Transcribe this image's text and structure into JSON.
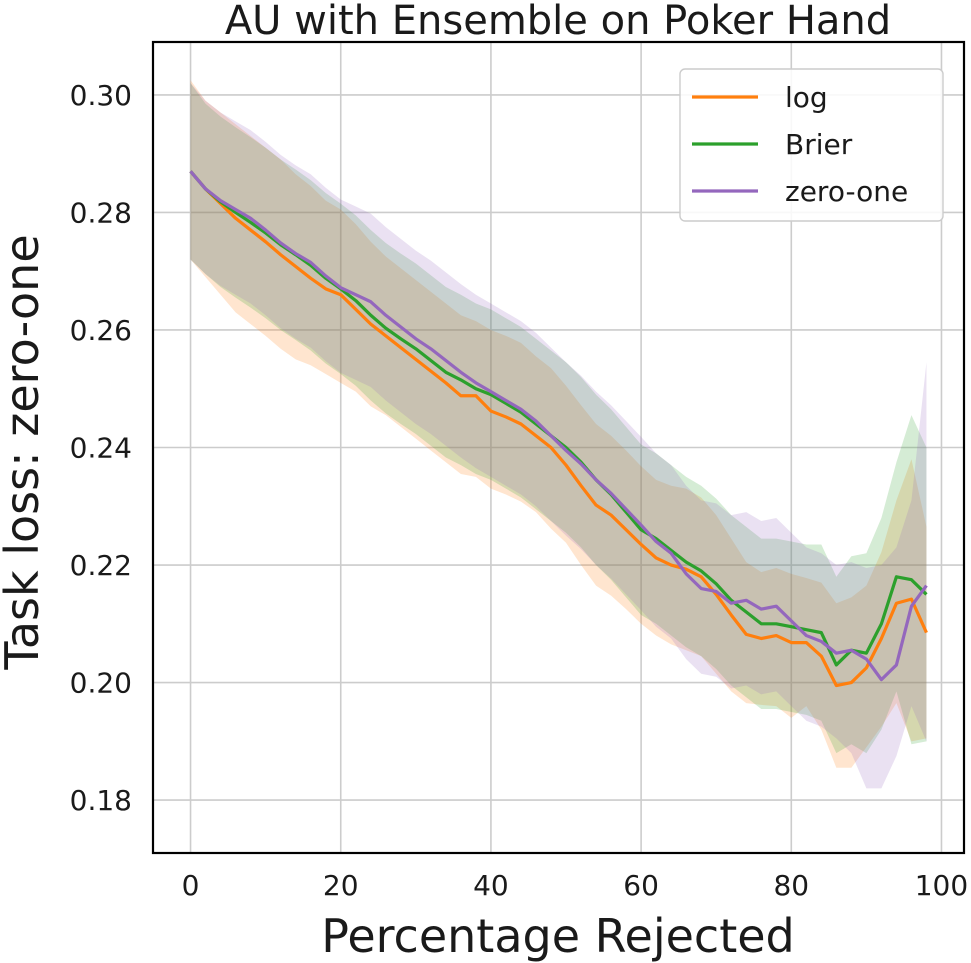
{
  "chart_data": {
    "type": "line",
    "title": "AU with Ensemble on Poker Hand",
    "xlabel": "Percentage Rejected",
    "ylabel": "Task loss: zero-one",
    "xlim": [
      -5,
      103
    ],
    "ylim": [
      0.171,
      0.309
    ],
    "xticks": [
      0,
      20,
      40,
      60,
      80,
      100
    ],
    "yticks": [
      0.18,
      0.2,
      0.22,
      0.24,
      0.26,
      0.28,
      0.3
    ],
    "xtick_labels": [
      "0",
      "20",
      "40",
      "60",
      "80",
      "100"
    ],
    "ytick_labels": [
      "0.18",
      "0.20",
      "0.22",
      "0.24",
      "0.26",
      "0.28",
      "0.30"
    ],
    "grid": true,
    "legend_position": "top-right",
    "x": [
      0,
      2,
      4,
      6,
      8,
      10,
      12,
      14,
      16,
      18,
      20,
      22,
      24,
      26,
      28,
      30,
      32,
      34,
      36,
      38,
      40,
      42,
      44,
      46,
      48,
      50,
      52,
      54,
      56,
      58,
      60,
      62,
      64,
      66,
      68,
      70,
      72,
      74,
      76,
      78,
      80,
      82,
      84,
      86,
      88,
      90,
      92,
      94,
      96,
      98
    ],
    "series": [
      {
        "name": "log",
        "color": "#ff7f0e",
        "values": [
          0.287,
          0.284,
          0.2815,
          0.279,
          0.277,
          0.275,
          0.2728,
          0.2708,
          0.2688,
          0.267,
          0.266,
          0.2635,
          0.261,
          0.259,
          0.257,
          0.255,
          0.253,
          0.251,
          0.2488,
          0.2488,
          0.2462,
          0.2452,
          0.244,
          0.242,
          0.24,
          0.237,
          0.2335,
          0.2302,
          0.2285,
          0.226,
          0.2235,
          0.2212,
          0.22,
          0.2193,
          0.218,
          0.215,
          0.2115,
          0.2082,
          0.2075,
          0.208,
          0.2068,
          0.2068,
          0.2045,
          0.1995,
          0.2,
          0.2025,
          0.2075,
          0.2135,
          0.2142,
          0.2085
        ],
        "lower": [
          0.272,
          0.269,
          0.266,
          0.263,
          0.261,
          0.259,
          0.2568,
          0.255,
          0.254,
          0.2525,
          0.251,
          0.2495,
          0.247,
          0.2455,
          0.2435,
          0.2415,
          0.2395,
          0.2375,
          0.2355,
          0.235,
          0.233,
          0.232,
          0.2308,
          0.229,
          0.2262,
          0.2238,
          0.22,
          0.2165,
          0.2148,
          0.2125,
          0.21,
          0.208,
          0.2065,
          0.2055,
          0.2045,
          0.2015,
          0.1985,
          0.1965,
          0.1962,
          0.196,
          0.194,
          0.196,
          0.192,
          0.1855,
          0.1855,
          0.189,
          0.1925,
          0.1965,
          0.19,
          0.1905
        ],
        "upper": [
          0.3025,
          0.299,
          0.297,
          0.295,
          0.293,
          0.291,
          0.289,
          0.2865,
          0.2845,
          0.282,
          0.2805,
          0.278,
          0.275,
          0.2725,
          0.2705,
          0.2685,
          0.2665,
          0.2645,
          0.2625,
          0.2615,
          0.26,
          0.259,
          0.2578,
          0.2555,
          0.2535,
          0.2505,
          0.2472,
          0.244,
          0.242,
          0.2395,
          0.2368,
          0.2345,
          0.2335,
          0.233,
          0.2315,
          0.2285,
          0.2245,
          0.2205,
          0.2188,
          0.2195,
          0.2185,
          0.2178,
          0.217,
          0.2135,
          0.2145,
          0.2165,
          0.2222,
          0.231,
          0.238,
          0.2265
        ]
      },
      {
        "name": "Brier",
        "color": "#2ca02c",
        "values": [
          0.287,
          0.284,
          0.2818,
          0.28,
          0.2783,
          0.2765,
          0.2745,
          0.2728,
          0.271,
          0.2688,
          0.267,
          0.265,
          0.2625,
          0.2603,
          0.2585,
          0.2568,
          0.2548,
          0.2528,
          0.2515,
          0.25,
          0.249,
          0.2475,
          0.246,
          0.244,
          0.242,
          0.24,
          0.2375,
          0.2345,
          0.232,
          0.229,
          0.226,
          0.2245,
          0.2225,
          0.2205,
          0.219,
          0.2168,
          0.214,
          0.212,
          0.21,
          0.21,
          0.2095,
          0.209,
          0.2085,
          0.203,
          0.2055,
          0.205,
          0.21,
          0.218,
          0.2175,
          0.215
        ],
        "lower": [
          0.272,
          0.2695,
          0.2673,
          0.2655,
          0.2638,
          0.262,
          0.26,
          0.2583,
          0.2565,
          0.2543,
          0.2525,
          0.2505,
          0.248,
          0.2458,
          0.244,
          0.2423,
          0.2403,
          0.2383,
          0.237,
          0.2355,
          0.2345,
          0.233,
          0.2315,
          0.2295,
          0.2275,
          0.2255,
          0.223,
          0.22,
          0.2175,
          0.2145,
          0.2115,
          0.21,
          0.208,
          0.206,
          0.2045,
          0.2023,
          0.1995,
          0.1975,
          0.1955,
          0.1955,
          0.195,
          0.1945,
          0.1935,
          0.188,
          0.1895,
          0.188,
          0.192,
          0.1985,
          0.1895,
          0.19
        ],
        "upper": [
          0.302,
          0.2985,
          0.2963,
          0.2945,
          0.2928,
          0.291,
          0.289,
          0.2873,
          0.2855,
          0.2833,
          0.2815,
          0.2795,
          0.277,
          0.2748,
          0.273,
          0.2713,
          0.2693,
          0.2673,
          0.266,
          0.2645,
          0.2635,
          0.262,
          0.2605,
          0.2585,
          0.2565,
          0.2545,
          0.252,
          0.249,
          0.2465,
          0.2435,
          0.2405,
          0.239,
          0.237,
          0.235,
          0.2335,
          0.2313,
          0.2285,
          0.2265,
          0.2245,
          0.2245,
          0.224,
          0.2235,
          0.2235,
          0.218,
          0.2215,
          0.222,
          0.228,
          0.2375,
          0.2455,
          0.24
        ]
      },
      {
        "name": "zero-one",
        "color": "#9467bd",
        "values": [
          0.287,
          0.284,
          0.282,
          0.2805,
          0.279,
          0.277,
          0.2748,
          0.273,
          0.2715,
          0.2692,
          0.2672,
          0.266,
          0.2648,
          0.2625,
          0.2605,
          0.2585,
          0.2568,
          0.2548,
          0.2528,
          0.251,
          0.2495,
          0.248,
          0.2465,
          0.2445,
          0.242,
          0.2395,
          0.2372,
          0.2345,
          0.2322,
          0.2295,
          0.2268,
          0.224,
          0.222,
          0.2185,
          0.216,
          0.2155,
          0.2135,
          0.214,
          0.2125,
          0.213,
          0.2105,
          0.208,
          0.207,
          0.205,
          0.2055,
          0.204,
          0.2005,
          0.203,
          0.213,
          0.2165
        ],
        "lower": [
          0.272,
          0.2695,
          0.2675,
          0.266,
          0.2645,
          0.2625,
          0.2603,
          0.2585,
          0.257,
          0.2547,
          0.2527,
          0.2515,
          0.2503,
          0.248,
          0.246,
          0.244,
          0.2423,
          0.2403,
          0.2383,
          0.2365,
          0.235,
          0.2335,
          0.232,
          0.23,
          0.2275,
          0.225,
          0.2227,
          0.22,
          0.2177,
          0.215,
          0.2123,
          0.2095,
          0.2075,
          0.204,
          0.2015,
          0.201,
          0.199,
          0.1995,
          0.198,
          0.1985,
          0.196,
          0.1935,
          0.1925,
          0.1905,
          0.188,
          0.182,
          0.182,
          0.1875,
          0.196,
          0.19
        ],
        "upper": [
          0.302,
          0.299,
          0.297,
          0.2955,
          0.294,
          0.292,
          0.2898,
          0.288,
          0.2865,
          0.2842,
          0.2822,
          0.281,
          0.2798,
          0.2775,
          0.2755,
          0.2735,
          0.2718,
          0.2698,
          0.2678,
          0.266,
          0.2645,
          0.263,
          0.2615,
          0.2595,
          0.257,
          0.2545,
          0.2522,
          0.2495,
          0.2472,
          0.2445,
          0.2418,
          0.239,
          0.237,
          0.2335,
          0.231,
          0.2305,
          0.2285,
          0.229,
          0.2275,
          0.228,
          0.2255,
          0.223,
          0.222,
          0.22,
          0.2205,
          0.2195,
          0.22,
          0.223,
          0.231,
          0.2545
        ]
      }
    ]
  }
}
